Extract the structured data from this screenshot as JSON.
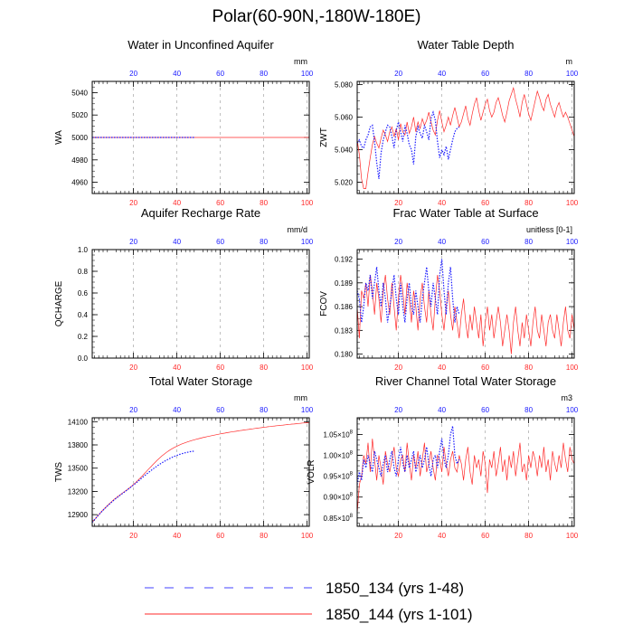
{
  "figure": {
    "title": "Polar(60-90N,-180W-180E)",
    "colors": {
      "red": "#ff2a2a",
      "blue": "#1a1aff",
      "grid": "#b0b0b0"
    },
    "legend": [
      {
        "label": "1850_134 (yrs 1-48)",
        "color": "#4040ff",
        "dash": "10,12"
      },
      {
        "label": "1850_144 (yrs 1-101)",
        "color": "#ff2a2a",
        "dash": ""
      }
    ]
  },
  "chart_data": [
    {
      "type": "line",
      "title": "Water in Unconfined Aquifer",
      "ylabel": "WA",
      "units": "mm",
      "xlim": [
        1,
        101
      ],
      "ylim": [
        4950,
        5050
      ],
      "yticks": [
        4960,
        4980,
        5000,
        5020,
        5040
      ],
      "xticks": [
        20,
        40,
        60,
        80,
        100
      ],
      "grid": "x-dashed",
      "series": [
        {
          "name": "1850_144 (yrs 1-101)",
          "color": "#ff2a2a",
          "style": "solid",
          "x_start": 1,
          "values": [
            5000,
            5000,
            5000,
            5000,
            5000,
            5000,
            5000,
            5000,
            5000,
            5000,
            5000,
            5000,
            5000,
            5000,
            5000,
            5000,
            5000,
            5000,
            5000,
            5000,
            5000,
            5000,
            5000,
            5000,
            5000,
            5000,
            5000,
            5000,
            5000,
            5000,
            5000,
            5000,
            5000,
            5000,
            5000,
            5000,
            5000,
            5000,
            5000,
            5000,
            5000,
            5000,
            5000,
            5000,
            5000,
            5000,
            5000,
            5000,
            5000,
            5000,
            5000,
            5000,
            5000,
            5000,
            5000,
            5000,
            5000,
            5000,
            5000,
            5000,
            5000,
            5000,
            5000,
            5000,
            5000,
            5000,
            5000,
            5000,
            5000,
            5000,
            5000,
            5000,
            5000,
            5000,
            5000,
            5000,
            5000,
            5000,
            5000,
            5000,
            5000,
            5000,
            5000,
            5000,
            5000,
            5000,
            5000,
            5000,
            5000,
            5000,
            5000,
            5000,
            5000,
            5000,
            5000,
            5000,
            5000,
            5000,
            5000,
            5000,
            5000
          ]
        },
        {
          "name": "1850_134 (yrs 1-48)",
          "color": "#1a1aff",
          "style": "dotted",
          "x_start": 1,
          "values": [
            5000,
            5000,
            5000,
            5000,
            5000,
            5000,
            5000,
            5000,
            5000,
            5000,
            5000,
            5000,
            5000,
            5000,
            5000,
            5000,
            5000,
            5000,
            5000,
            5000,
            5000,
            5000,
            5000,
            5000,
            5000,
            5000,
            5000,
            5000,
            5000,
            5000,
            5000,
            5000,
            5000,
            5000,
            5000,
            5000,
            5000,
            5000,
            5000,
            5000,
            5000,
            5000,
            5000,
            5000,
            5000,
            5000,
            5000,
            5000
          ]
        }
      ]
    },
    {
      "type": "line",
      "title": "Water Table Depth",
      "ylabel": "ZWT",
      "units": "m",
      "xlim": [
        1,
        101
      ],
      "ylim": [
        5.013,
        5.082
      ],
      "yticks": [
        "5.020",
        "5.040",
        "5.060",
        "5.080"
      ],
      "xticks": [
        20,
        40,
        60,
        80,
        100
      ],
      "grid": "x-dashed",
      "series": [
        {
          "name": "1850_144 (yrs 1-101)",
          "color": "#ff2a2a",
          "style": "solid",
          "x_start": 1,
          "values": [
            5.046,
            5.037,
            5.022,
            5.016,
            5.016,
            5.026,
            5.035,
            5.043,
            5.048,
            5.044,
            5.041,
            5.047,
            5.052,
            5.049,
            5.045,
            5.051,
            5.054,
            5.048,
            5.053,
            5.046,
            5.056,
            5.051,
            5.049,
            5.057,
            5.05,
            5.054,
            5.06,
            5.051,
            5.057,
            5.053,
            5.059,
            5.055,
            5.058,
            5.063,
            5.057,
            5.052,
            5.049,
            5.058,
            5.064,
            5.057,
            5.051,
            5.055,
            5.06,
            5.055,
            5.061,
            5.066,
            5.06,
            5.054,
            5.057,
            5.062,
            5.067,
            5.059,
            5.055,
            5.062,
            5.068,
            5.072,
            5.064,
            5.058,
            5.063,
            5.068,
            5.071,
            5.064,
            5.06,
            5.063,
            5.069,
            5.072,
            5.067,
            5.061,
            5.057,
            5.063,
            5.07,
            5.074,
            5.078,
            5.071,
            5.066,
            5.06,
            5.069,
            5.074,
            5.068,
            5.062,
            5.058,
            5.064,
            5.07,
            5.076,
            5.072,
            5.067,
            5.064,
            5.071,
            5.074,
            5.068,
            5.064,
            5.06,
            5.066,
            5.069,
            5.064,
            5.06,
            5.063,
            5.06,
            5.056,
            5.052,
            5.048
          ]
        },
        {
          "name": "1850_134 (yrs 1-48)",
          "color": "#1a1aff",
          "style": "dotted",
          "x_start": 1,
          "values": [
            5.044,
            5.046,
            5.042,
            5.041,
            5.046,
            5.049,
            5.054,
            5.055,
            5.045,
            5.032,
            5.022,
            5.038,
            5.046,
            5.051,
            5.055,
            5.054,
            5.048,
            5.041,
            5.052,
            5.057,
            5.051,
            5.045,
            5.055,
            5.05,
            5.043,
            5.04,
            5.031,
            5.048,
            5.054,
            5.05,
            5.047,
            5.055,
            5.051,
            5.046,
            5.059,
            5.063,
            5.058,
            5.045,
            5.035,
            5.04,
            5.037,
            5.042,
            5.034,
            5.04,
            5.046,
            5.051,
            5.053,
            5.054
          ]
        }
      ]
    },
    {
      "type": "line",
      "title": "Aquifer Recharge Rate",
      "ylabel": "QCHARGE",
      "units": "mm/d",
      "xlim": [
        1,
        101
      ],
      "ylim": [
        0,
        1
      ],
      "yticks": [
        "0.0",
        "0.2",
        "0.4",
        "0.6",
        "0.8",
        "1.0"
      ],
      "xticks": [
        20,
        40,
        60,
        80,
        100
      ],
      "grid": "x-dashed",
      "series": []
    },
    {
      "type": "line",
      "title": "Frac Water Table at Surface",
      "ylabel": "FCOV",
      "units": "unitless [0-1]",
      "xlim": [
        1,
        101
      ],
      "ylim": [
        0.1795,
        0.1932
      ],
      "yticks": [
        "0.180",
        "0.183",
        "0.186",
        "0.189",
        "0.192"
      ],
      "xticks": [
        20,
        40,
        60,
        80,
        100
      ],
      "grid": "x-dashed",
      "series": [
        {
          "name": "1850_144 (yrs 1-101)",
          "color": "#ff2a2a",
          "style": "solid",
          "x_start": 1,
          "values": [
            0.186,
            0.182,
            0.188,
            0.187,
            0.189,
            0.186,
            0.19,
            0.188,
            0.185,
            0.189,
            0.187,
            0.184,
            0.188,
            0.19,
            0.187,
            0.185,
            0.189,
            0.186,
            0.183,
            0.187,
            0.19,
            0.188,
            0.185,
            0.189,
            0.187,
            0.184,
            0.188,
            0.186,
            0.183,
            0.187,
            0.189,
            0.186,
            0.184,
            0.188,
            0.185,
            0.183,
            0.187,
            0.19,
            0.188,
            0.185,
            0.183,
            0.186,
            0.188,
            0.185,
            0.183,
            0.186,
            0.184,
            0.182,
            0.185,
            0.187,
            0.184,
            0.182,
            0.185,
            0.183,
            0.186,
            0.184,
            0.182,
            0.185,
            0.181,
            0.184,
            0.186,
            0.183,
            0.185,
            0.182,
            0.184,
            0.186,
            0.184,
            0.181,
            0.183,
            0.185,
            0.183,
            0.18,
            0.184,
            0.186,
            0.183,
            0.181,
            0.184,
            0.182,
            0.185,
            0.183,
            0.181,
            0.184,
            0.186,
            0.183,
            0.182,
            0.185,
            0.183,
            0.181,
            0.184,
            0.185,
            0.183,
            0.182,
            0.185,
            0.183,
            0.181,
            0.184,
            0.186,
            0.183,
            0.182,
            0.185,
            0.183
          ]
        },
        {
          "name": "1850_134 (yrs 1-48)",
          "color": "#1a1aff",
          "style": "dotted",
          "x_start": 1,
          "values": [
            0.188,
            0.187,
            0.184,
            0.186,
            0.189,
            0.188,
            0.19,
            0.187,
            0.189,
            0.191,
            0.188,
            0.186,
            0.189,
            0.187,
            0.184,
            0.186,
            0.188,
            0.19,
            0.187,
            0.185,
            0.189,
            0.186,
            0.184,
            0.187,
            0.189,
            0.186,
            0.185,
            0.188,
            0.186,
            0.184,
            0.187,
            0.189,
            0.191,
            0.188,
            0.186,
            0.189,
            0.187,
            0.185,
            0.19,
            0.192,
            0.188,
            0.185,
            0.189,
            0.191,
            0.187,
            0.184,
            0.186,
            0.185
          ]
        }
      ]
    },
    {
      "type": "line",
      "title": "Total Water Storage",
      "ylabel": "TWS",
      "units": "mm",
      "xlim": [
        1,
        101
      ],
      "ylim": [
        12750,
        14150
      ],
      "yticks": [
        12900,
        13200,
        13500,
        13800,
        14100
      ],
      "xticks": [
        20,
        40,
        60,
        80,
        100
      ],
      "grid": "x-dashed",
      "series": [
        {
          "name": "1850_144 (yrs 1-101)",
          "color": "#ff2a2a",
          "style": "solid",
          "x_start": 1,
          "values": [
            12800,
            12835,
            12868,
            12900,
            12932,
            12962,
            12990,
            13018,
            13045,
            13070,
            13095,
            13118,
            13140,
            13160,
            13180,
            13200,
            13220,
            13242,
            13265,
            13290,
            13315,
            13342,
            13370,
            13398,
            13428,
            13458,
            13488,
            13518,
            13548,
            13576,
            13604,
            13630,
            13655,
            13678,
            13700,
            13720,
            13738,
            13755,
            13770,
            13784,
            13797,
            13809,
            13820,
            13830,
            13840,
            13849,
            13857,
            13865,
            13873,
            13880,
            13887,
            13894,
            13900,
            13907,
            13913,
            13919,
            13925,
            13931,
            13937,
            13942,
            13947,
            13952,
            13957,
            13962,
            13967,
            13971,
            13975,
            13980,
            13984,
            13988,
            13992,
            13996,
            14000,
            14004,
            14008,
            14012,
            14016,
            14019,
            14023,
            14027,
            14030,
            14034,
            14037,
            14041,
            14044,
            14047,
            14050,
            14053,
            14056,
            14059,
            14062,
            14065,
            14068,
            14070,
            14073,
            14076,
            14079,
            14082,
            14085,
            14087,
            14088
          ]
        },
        {
          "name": "1850_134 (yrs 1-48)",
          "color": "#1a1aff",
          "style": "dotted",
          "x_start": 1,
          "values": [
            12800,
            12834,
            12866,
            12897,
            12928,
            12957,
            12985,
            13012,
            13038,
            13063,
            13087,
            13110,
            13132,
            13154,
            13175,
            13196,
            13217,
            13238,
            13260,
            13282,
            13305,
            13328,
            13352,
            13376,
            13400,
            13423,
            13446,
            13468,
            13490,
            13510,
            13530,
            13549,
            13567,
            13584,
            13600,
            13615,
            13629,
            13642,
            13654,
            13665,
            13675,
            13684,
            13692,
            13700,
            13706,
            13712,
            13716,
            13720
          ]
        }
      ]
    },
    {
      "type": "line",
      "title": "River Channel Total Water Storage",
      "ylabel": "VOLR",
      "units": "m3",
      "xlim": [
        1,
        101
      ],
      "ylim": [
        0.83,
        1.09
      ],
      "yscale_exponent": 8,
      "yticks": [
        "0.85",
        "0.90",
        "0.95",
        "1.00",
        "1.05"
      ],
      "xticks": [
        20,
        40,
        60,
        80,
        100
      ],
      "grid": "x-dashed",
      "series": [
        {
          "name": "1850_144 (yrs 1-101)",
          "color": "#ff2a2a",
          "style": "solid",
          "x_start": 1,
          "values": [
            0.86,
            0.93,
            0.95,
            1.0,
            0.98,
            1.03,
            0.96,
            1.04,
            0.99,
            0.94,
            1.0,
            0.97,
            0.93,
            1.01,
            0.98,
            0.96,
            0.99,
            1.02,
            0.97,
            0.95,
            0.99,
            1.0,
            0.96,
            1.03,
            0.98,
            0.94,
            1.0,
            0.97,
            1.01,
            0.95,
            0.99,
            1.03,
            0.96,
            0.98,
            1.01,
            0.97,
            0.94,
            1.0,
            0.99,
            0.96,
            1.02,
            0.98,
            0.95,
            0.99,
            1.01,
            0.97,
            0.96,
            1.0,
            0.98,
            0.94,
            0.99,
            1.02,
            0.96,
            0.93,
            1.0,
            0.97,
            0.99,
            0.95,
            1.01,
            0.98,
            0.91,
            0.99,
            0.97,
            1.01,
            0.95,
            0.98,
            1.02,
            0.96,
            0.99,
            0.94,
            1.0,
            0.97,
            1.01,
            0.95,
            0.99,
            1.03,
            0.96,
            0.98,
            0.94,
            1.0,
            0.97,
            1.01,
            0.99,
            0.95,
            1.0,
            0.97,
            1.02,
            0.96,
            0.99,
            0.94,
            1.01,
            0.98,
            0.96,
            1.0,
            0.97,
            1.03,
            0.99,
            0.96,
            1.02,
            0.99,
            0.98
          ]
        },
        {
          "name": "1850_134 (yrs 1-48)",
          "color": "#1a1aff",
          "style": "dotted",
          "x_start": 1,
          "values": [
            0.93,
            0.96,
            0.94,
            0.99,
            0.97,
            1.0,
            0.98,
            0.96,
            1.01,
            0.99,
            0.97,
            0.95,
            0.98,
            1.0,
            0.96,
            0.99,
            1.01,
            0.97,
            0.95,
            0.99,
            1.02,
            0.98,
            0.96,
            1.0,
            0.97,
            0.99,
            1.01,
            0.96,
            0.98,
            1.0,
            0.97,
            0.99,
            1.02,
            0.98,
            0.95,
            0.99,
            1.0,
            0.97,
            1.01,
            1.04,
            0.99,
            0.97,
            1.0,
            1.05,
            1.07,
            1.0,
            0.98,
            0.99
          ]
        }
      ]
    }
  ]
}
